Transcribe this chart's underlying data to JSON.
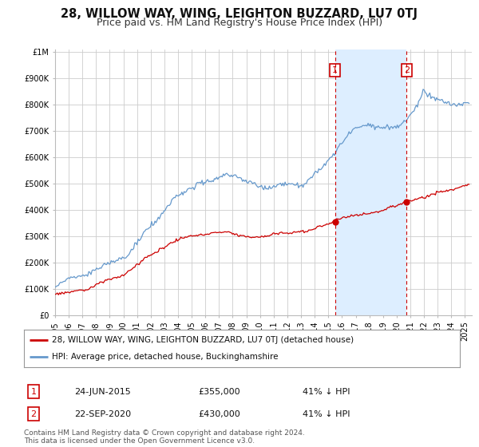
{
  "title": "28, WILLOW WAY, WING, LEIGHTON BUZZARD, LU7 0TJ",
  "subtitle": "Price paid vs. HM Land Registry's House Price Index (HPI)",
  "red_label": "28, WILLOW WAY, WING, LEIGHTON BUZZARD, LU7 0TJ (detached house)",
  "blue_label": "HPI: Average price, detached house, Buckinghamshire",
  "footnote": "Contains HM Land Registry data © Crown copyright and database right 2024.\nThis data is licensed under the Open Government Licence v3.0.",
  "point1_label": "1",
  "point1_date": "24-JUN-2015",
  "point1_price": "£355,000",
  "point1_pct": "41% ↓ HPI",
  "point1_x": 2015.48,
  "point1_y": 355000,
  "point2_label": "2",
  "point2_date": "22-SEP-2020",
  "point2_price": "£430,000",
  "point2_pct": "41% ↓ HPI",
  "point2_x": 2020.72,
  "point2_y": 430000,
  "ylim_min": 0,
  "ylim_max": 1000000,
  "yticks": [
    0,
    100000,
    200000,
    300000,
    400000,
    500000,
    600000,
    700000,
    800000,
    900000,
    1000000
  ],
  "ytick_labels": [
    "£0",
    "£100K",
    "£200K",
    "£300K",
    "£400K",
    "£500K",
    "£600K",
    "£700K",
    "£800K",
    "£900K",
    "£1M"
  ],
  "xlim_min": 1995,
  "xlim_max": 2025.5,
  "xticks": [
    1995,
    1996,
    1997,
    1998,
    1999,
    2000,
    2001,
    2002,
    2003,
    2004,
    2005,
    2006,
    2007,
    2008,
    2009,
    2010,
    2011,
    2012,
    2013,
    2014,
    2015,
    2016,
    2017,
    2018,
    2019,
    2020,
    2021,
    2022,
    2023,
    2024,
    2025
  ],
  "background_color": "#ffffff",
  "grid_color": "#cccccc",
  "red_color": "#cc0000",
  "blue_color": "#6699cc",
  "shade_color": "#ddeeff",
  "vline_color": "#cc0000",
  "title_fontsize": 10.5,
  "subtitle_fontsize": 9,
  "tick_fontsize": 7,
  "legend_fontsize": 7.5,
  "table_fontsize": 8,
  "footnote_fontsize": 6.5
}
